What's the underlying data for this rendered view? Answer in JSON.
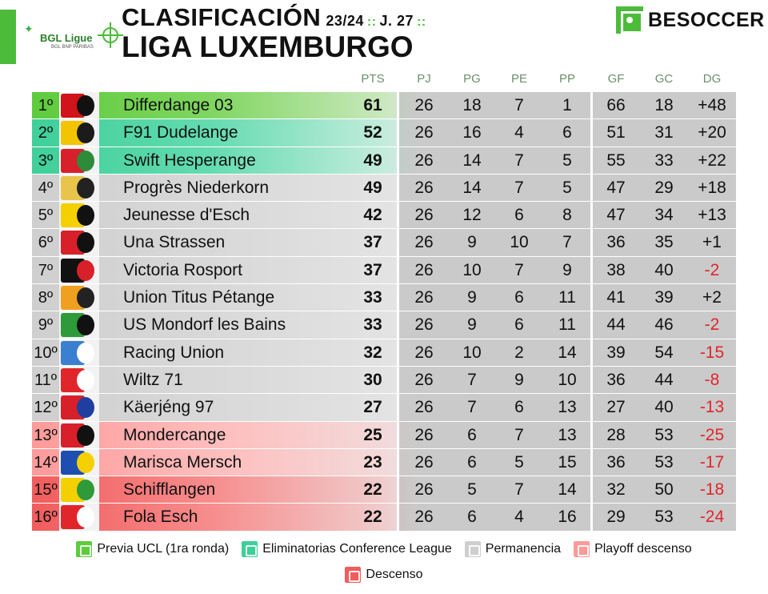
{
  "header": {
    "league_logo_text": "BGL Ligue",
    "league_logo_sub": "BGL BNP PARIBAS",
    "title": "CLASIFICACIÓN",
    "season": "23/24",
    "separator": "::",
    "matchday": "J. 27",
    "subtitle": "LIGA LUXEMBURGO",
    "brand": "BESOCCER"
  },
  "columns": [
    "PTS",
    "PJ",
    "PG",
    "PE",
    "PP",
    "GF",
    "GC",
    "DG"
  ],
  "rows": [
    {
      "pos": "1º",
      "team": "Differdange 03",
      "pts": "61",
      "pj": "26",
      "pg": "18",
      "pe": "7",
      "pp": "1",
      "gf": "66",
      "gc": "18",
      "dg": "+48",
      "zone": "green",
      "crest_colors": [
        "#d0141a",
        "#111111"
      ]
    },
    {
      "pos": "2º",
      "team": "F91 Dudelange",
      "pts": "52",
      "pj": "26",
      "pg": "16",
      "pe": "4",
      "pp": "6",
      "gf": "51",
      "gc": "31",
      "dg": "+20",
      "zone": "teal",
      "crest_colors": [
        "#f3c400",
        "#1b1b1b"
      ]
    },
    {
      "pos": "3º",
      "team": "Swift Hesperange",
      "pts": "49",
      "pj": "26",
      "pg": "14",
      "pe": "7",
      "pp": "5",
      "gf": "55",
      "gc": "33",
      "dg": "+22",
      "zone": "teal",
      "crest_colors": [
        "#d8202a",
        "#2e8b3a"
      ]
    },
    {
      "pos": "4º",
      "team": "Progrès Niederkorn",
      "pts": "49",
      "pj": "26",
      "pg": "14",
      "pe": "7",
      "pp": "5",
      "gf": "47",
      "gc": "29",
      "dg": "+18",
      "zone": "grey",
      "crest_colors": [
        "#e8c54a",
        "#222222"
      ]
    },
    {
      "pos": "5º",
      "team": "Jeunesse d'Esch",
      "pts": "42",
      "pj": "26",
      "pg": "12",
      "pe": "6",
      "pp": "8",
      "gf": "47",
      "gc": "34",
      "dg": "+13",
      "zone": "grey",
      "crest_colors": [
        "#f4d000",
        "#111111"
      ]
    },
    {
      "pos": "6º",
      "team": "Una Strassen",
      "pts": "37",
      "pj": "26",
      "pg": "9",
      "pe": "10",
      "pp": "7",
      "gf": "36",
      "gc": "35",
      "dg": "+1",
      "zone": "grey",
      "crest_colors": [
        "#d8202a",
        "#111111"
      ]
    },
    {
      "pos": "7º",
      "team": "Victoria Rosport",
      "pts": "37",
      "pj": "26",
      "pg": "10",
      "pe": "7",
      "pp": "9",
      "gf": "38",
      "gc": "40",
      "dg": "-2",
      "zone": "grey",
      "crest_colors": [
        "#111111",
        "#d8202a"
      ]
    },
    {
      "pos": "8º",
      "team": "Union Titus Pétange",
      "pts": "33",
      "pj": "26",
      "pg": "9",
      "pe": "6",
      "pp": "11",
      "gf": "41",
      "gc": "39",
      "dg": "+2",
      "zone": "grey",
      "crest_colors": [
        "#f0a020",
        "#222222"
      ]
    },
    {
      "pos": "9º",
      "team": "US Mondorf les Bains",
      "pts": "33",
      "pj": "26",
      "pg": "9",
      "pe": "6",
      "pp": "11",
      "gf": "44",
      "gc": "46",
      "dg": "-2",
      "zone": "grey",
      "crest_colors": [
        "#2e9a3a",
        "#111111"
      ]
    },
    {
      "pos": "10º",
      "team": "Racing Union",
      "pts": "32",
      "pj": "26",
      "pg": "10",
      "pe": "2",
      "pp": "14",
      "gf": "39",
      "gc": "54",
      "dg": "-15",
      "zone": "grey",
      "crest_colors": [
        "#3a7fd0",
        "#ffffff"
      ]
    },
    {
      "pos": "11º",
      "team": "Wiltz 71",
      "pts": "30",
      "pj": "26",
      "pg": "7",
      "pe": "9",
      "pp": "10",
      "gf": "36",
      "gc": "44",
      "dg": "-8",
      "zone": "grey",
      "crest_colors": [
        "#e0262b",
        "#ffffff"
      ]
    },
    {
      "pos": "12º",
      "team": "Käerjéng 97",
      "pts": "27",
      "pj": "26",
      "pg": "7",
      "pe": "6",
      "pp": "13",
      "gf": "27",
      "gc": "40",
      "dg": "-13",
      "zone": "grey",
      "crest_colors": [
        "#d8202a",
        "#1e3fa0"
      ]
    },
    {
      "pos": "13º",
      "team": "Mondercange",
      "pts": "25",
      "pj": "26",
      "pg": "6",
      "pe": "7",
      "pp": "13",
      "gf": "28",
      "gc": "53",
      "dg": "-25",
      "zone": "pink",
      "crest_colors": [
        "#d8202a",
        "#111111"
      ]
    },
    {
      "pos": "14º",
      "team": "Marisca Mersch",
      "pts": "23",
      "pj": "26",
      "pg": "6",
      "pe": "5",
      "pp": "15",
      "gf": "36",
      "gc": "53",
      "dg": "-17",
      "zone": "pink",
      "crest_colors": [
        "#1e4fb0",
        "#f4d000"
      ]
    },
    {
      "pos": "15º",
      "team": "Schifflangen",
      "pts": "22",
      "pj": "26",
      "pg": "5",
      "pe": "7",
      "pp": "14",
      "gf": "32",
      "gc": "50",
      "dg": "-18",
      "zone": "red",
      "crest_colors": [
        "#f4d000",
        "#2e9a3a"
      ]
    },
    {
      "pos": "16º",
      "team": "Fola Esch",
      "pts": "22",
      "pj": "26",
      "pg": "6",
      "pe": "4",
      "pp": "16",
      "gf": "29",
      "gc": "53",
      "dg": "-24",
      "zone": "red",
      "crest_colors": [
        "#e0262b",
        "#ffffff"
      ]
    }
  ],
  "legend": [
    {
      "label": "Previa UCL (1ra ronda)",
      "color": "#5ecb3d",
      "icon": "ucl-icon"
    },
    {
      "label": "Eliminatorias Conference League",
      "color": "#3fcf9a",
      "icon": "conference-icon"
    },
    {
      "label": "Permanencia",
      "color": "#cfcfcf",
      "icon": "permanence-icon"
    },
    {
      "label": "Playoff descenso",
      "color": "#ff9a9a",
      "icon": "playoff-down-icon"
    },
    {
      "label": "Descenso",
      "color": "#f25c5c",
      "icon": "relegation-icon"
    }
  ]
}
